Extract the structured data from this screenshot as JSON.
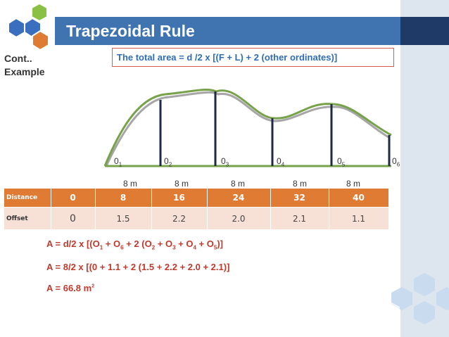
{
  "header": {
    "title": "Trapezoidal Rule"
  },
  "side_label": {
    "line1": "Cont..",
    "line2": "Example"
  },
  "formula": "The total area = d /2 x [(F + L) + 2 (other ordinates)]",
  "ordinate_labels": [
    {
      "base": "0",
      "sub": "1"
    },
    {
      "base": "0",
      "sub": "2"
    },
    {
      "base": "0",
      "sub": "3"
    },
    {
      "base": "0",
      "sub": "4"
    },
    {
      "base": "0",
      "sub": "5"
    },
    {
      "base": "0",
      "sub": "6"
    }
  ],
  "spacing_labels": [
    "8 m",
    "8 m",
    "8 m",
    "8 m",
    "8 m"
  ],
  "table": {
    "distance_label": "Distance",
    "offset_label": "Offset",
    "distance": [
      "0",
      "8",
      "16",
      "24",
      "32",
      "40"
    ],
    "offset": [
      "0",
      "1.5",
      "2.2",
      "2.0",
      "2.1",
      "1.1"
    ]
  },
  "equations": {
    "eq1": {
      "parts": [
        "A = d/2 x [(O",
        "1",
        " + O",
        "6",
        " + 2 (O",
        "2",
        " + O",
        "3",
        " + O",
        "4",
        " + O",
        "5",
        ")]"
      ]
    },
    "eq2": "A = 8/2 x [(0 + 1.1 + 2 (1.5 + 2.2 + 2.0 + 2.1)]",
    "eq3": {
      "text": "A = 66.8 m",
      "sup": "2"
    }
  },
  "colors": {
    "header": "#3f74b1",
    "header_dark": "#1f3a66",
    "accent_orange": "#e07b34",
    "table_row2": "#f7e0d6",
    "curve_green": "#77a24a",
    "formula_blue": "#2e6db6",
    "equation_red": "#c0392b",
    "hex_blue": "#3a6fbf",
    "hex_green": "#8ac043",
    "hex_orange": "#e07b34",
    "hex_pale": "#c9dbef"
  }
}
